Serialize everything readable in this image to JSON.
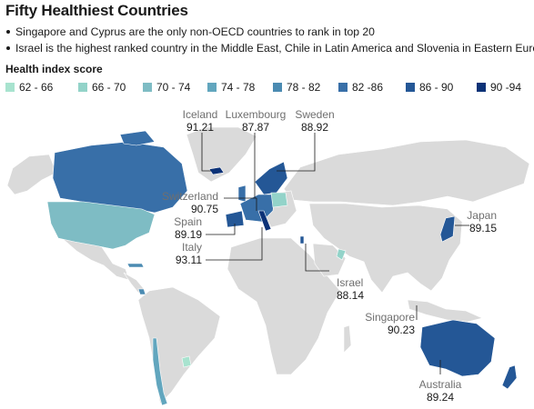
{
  "title": "Fifty Healthiest Countries",
  "bullets": [
    "Singapore and Cyprus are the only non-OECD countries to rank in top 20",
    "Israel is the highest ranked country in the Middle East, Chile in Latin America and Slovenia in Eastern Europe"
  ],
  "legend": {
    "title": "Health index score",
    "items": [
      {
        "label": "62 - 66",
        "color": "#a8e3cf"
      },
      {
        "label": "66 - 70",
        "color": "#93d3c9"
      },
      {
        "label": "70 - 74",
        "color": "#7ebcc4"
      },
      {
        "label": "74 - 78",
        "color": "#62a6be"
      },
      {
        "label": "78 - 82",
        "color": "#4b8bb2"
      },
      {
        "label": "82 -86",
        "color": "#386fa8"
      },
      {
        "label": "86 - 90",
        "color": "#245796"
      },
      {
        "label": "90 -94",
        "color": "#0c3277"
      }
    ]
  },
  "callouts": [
    {
      "name": "Iceland",
      "value": "91.21"
    },
    {
      "name": "Luxembourg",
      "value": "87.87"
    },
    {
      "name": "Sweden",
      "value": "88.92"
    },
    {
      "name": "Switzerland",
      "value": "90.75"
    },
    {
      "name": "Spain",
      "value": "89.19"
    },
    {
      "name": "Italy",
      "value": "93.11"
    },
    {
      "name": "Japan",
      "value": "89.15"
    },
    {
      "name": "Israel",
      "value": "88.14"
    },
    {
      "name": "Singapore",
      "value": "90.23"
    },
    {
      "name": "Australia",
      "value": "89.24"
    }
  ],
  "colors": {
    "land": "#dadada",
    "leader_line": "#1a1a1a"
  }
}
